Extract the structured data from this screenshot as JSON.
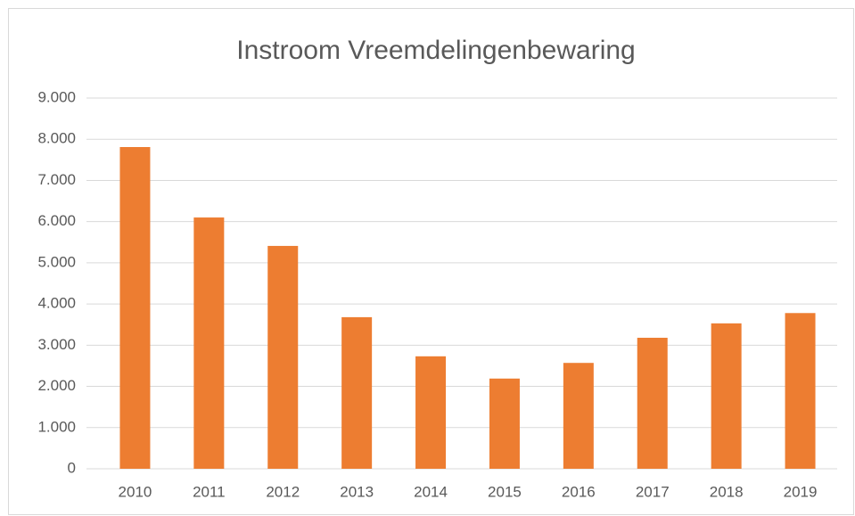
{
  "chart_data": {
    "type": "bar",
    "title": "Instroom Vreemdelingenbewaring",
    "categories": [
      "2010",
      "2011",
      "2012",
      "2013",
      "2014",
      "2015",
      "2016",
      "2017",
      "2018",
      "2019"
    ],
    "values": [
      7810,
      6100,
      5410,
      3680,
      2730,
      2190,
      2570,
      3180,
      3530,
      3780
    ],
    "color": "#ed7d31",
    "ylim": [
      0,
      9000
    ],
    "yticks": [
      0,
      {
        "value": 1000,
        "label": "1.000"
      },
      {
        "value": 2000,
        "label": "2.000"
      },
      {
        "value": 3000,
        "label": "3.000"
      },
      {
        "value": 4000,
        "label": "4.000"
      },
      {
        "value": 5000,
        "label": "5.000"
      },
      {
        "value": 6000,
        "label": "6.000"
      },
      {
        "value": 7000,
        "label": "7.000"
      },
      {
        "value": 8000,
        "label": "8.000"
      },
      {
        "value": 9000,
        "label": "9.000"
      }
    ],
    "grid": true
  }
}
